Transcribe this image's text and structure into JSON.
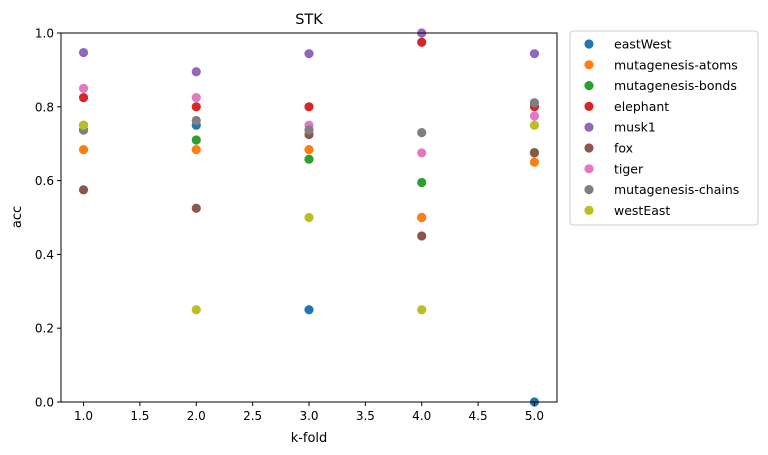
{
  "chart_data": {
    "type": "scatter",
    "title": "STK",
    "xlabel": "k-fold",
    "ylabel": "acc",
    "xlim": [
      0.8,
      5.2
    ],
    "ylim": [
      0.0,
      1.0
    ],
    "xticks": [
      1.0,
      1.5,
      2.0,
      2.5,
      3.0,
      3.5,
      4.0,
      4.5,
      5.0
    ],
    "xtick_labels": [
      "1.0",
      "1.5",
      "2.0",
      "2.5",
      "3.0",
      "3.5",
      "4.0",
      "4.5",
      "5.0"
    ],
    "yticks": [
      0.0,
      0.2,
      0.4,
      0.6,
      0.8,
      1.0
    ],
    "ytick_labels": [
      "0.0",
      "0.2",
      "0.4",
      "0.6",
      "0.8",
      "1.0"
    ],
    "grid": false,
    "legend_position": "outside-right",
    "series": [
      {
        "name": "eastWest",
        "color": "#1f77b4",
        "x": [
          1,
          2,
          3,
          4,
          5
        ],
        "y": [
          0.75,
          0.75,
          0.25,
          0.5,
          0.0
        ]
      },
      {
        "name": "mutagenesis-atoms",
        "color": "#ff7f0e",
        "x": [
          1,
          2,
          3,
          4,
          5
        ],
        "y": [
          0.684,
          0.684,
          0.684,
          0.5,
          0.65
        ]
      },
      {
        "name": "mutagenesis-bonds",
        "color": "#2ca02c",
        "x": [
          1,
          2,
          3,
          4,
          5
        ],
        "y": [
          0.737,
          0.71,
          0.658,
          0.595,
          0.676
        ]
      },
      {
        "name": "elephant",
        "color": "#d62728",
        "x": [
          1,
          2,
          3,
          4,
          5
        ],
        "y": [
          0.825,
          0.8,
          0.8,
          0.975,
          0.8
        ]
      },
      {
        "name": "musk1",
        "color": "#9467bd",
        "x": [
          1,
          2,
          3,
          4,
          5
        ],
        "y": [
          0.947,
          0.895,
          0.944,
          1.0,
          0.944
        ]
      },
      {
        "name": "fox",
        "color": "#8c564b",
        "x": [
          1,
          2,
          3,
          4,
          5
        ],
        "y": [
          0.575,
          0.525,
          0.725,
          0.45,
          0.675
        ]
      },
      {
        "name": "tiger",
        "color": "#e377c2",
        "x": [
          1,
          2,
          3,
          4,
          5
        ],
        "y": [
          0.85,
          0.825,
          0.75,
          0.675,
          0.775
        ]
      },
      {
        "name": "mutagenesis-chains",
        "color": "#7f7f7f",
        "x": [
          1,
          2,
          3,
          4,
          5
        ],
        "y": [
          0.737,
          0.763,
          0.737,
          0.73,
          0.811
        ]
      },
      {
        "name": "westEast",
        "color": "#bcbd22",
        "x": [
          1,
          2,
          3,
          4,
          5
        ],
        "y": [
          0.75,
          0.25,
          0.5,
          0.25,
          0.75
        ]
      }
    ]
  }
}
